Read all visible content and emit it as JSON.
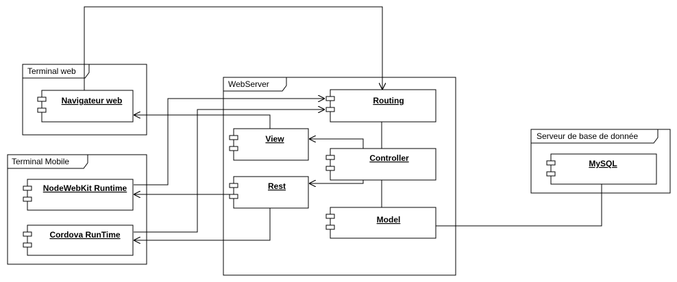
{
  "packages": {
    "terminal_web": "Terminal web",
    "terminal_mobile": "Terminal Mobile",
    "webserver": "WebServer",
    "db_server": "Serveur de base de donnée"
  },
  "components": {
    "navigateur": "Navigateur web",
    "nodewebkit": "NodeWebKit Runtime",
    "cordova": "Cordova RunTime",
    "routing": "Routing",
    "view": "View",
    "controller": "Controller",
    "rest": "Rest",
    "model": "Model",
    "mysql": "MySQL"
  }
}
